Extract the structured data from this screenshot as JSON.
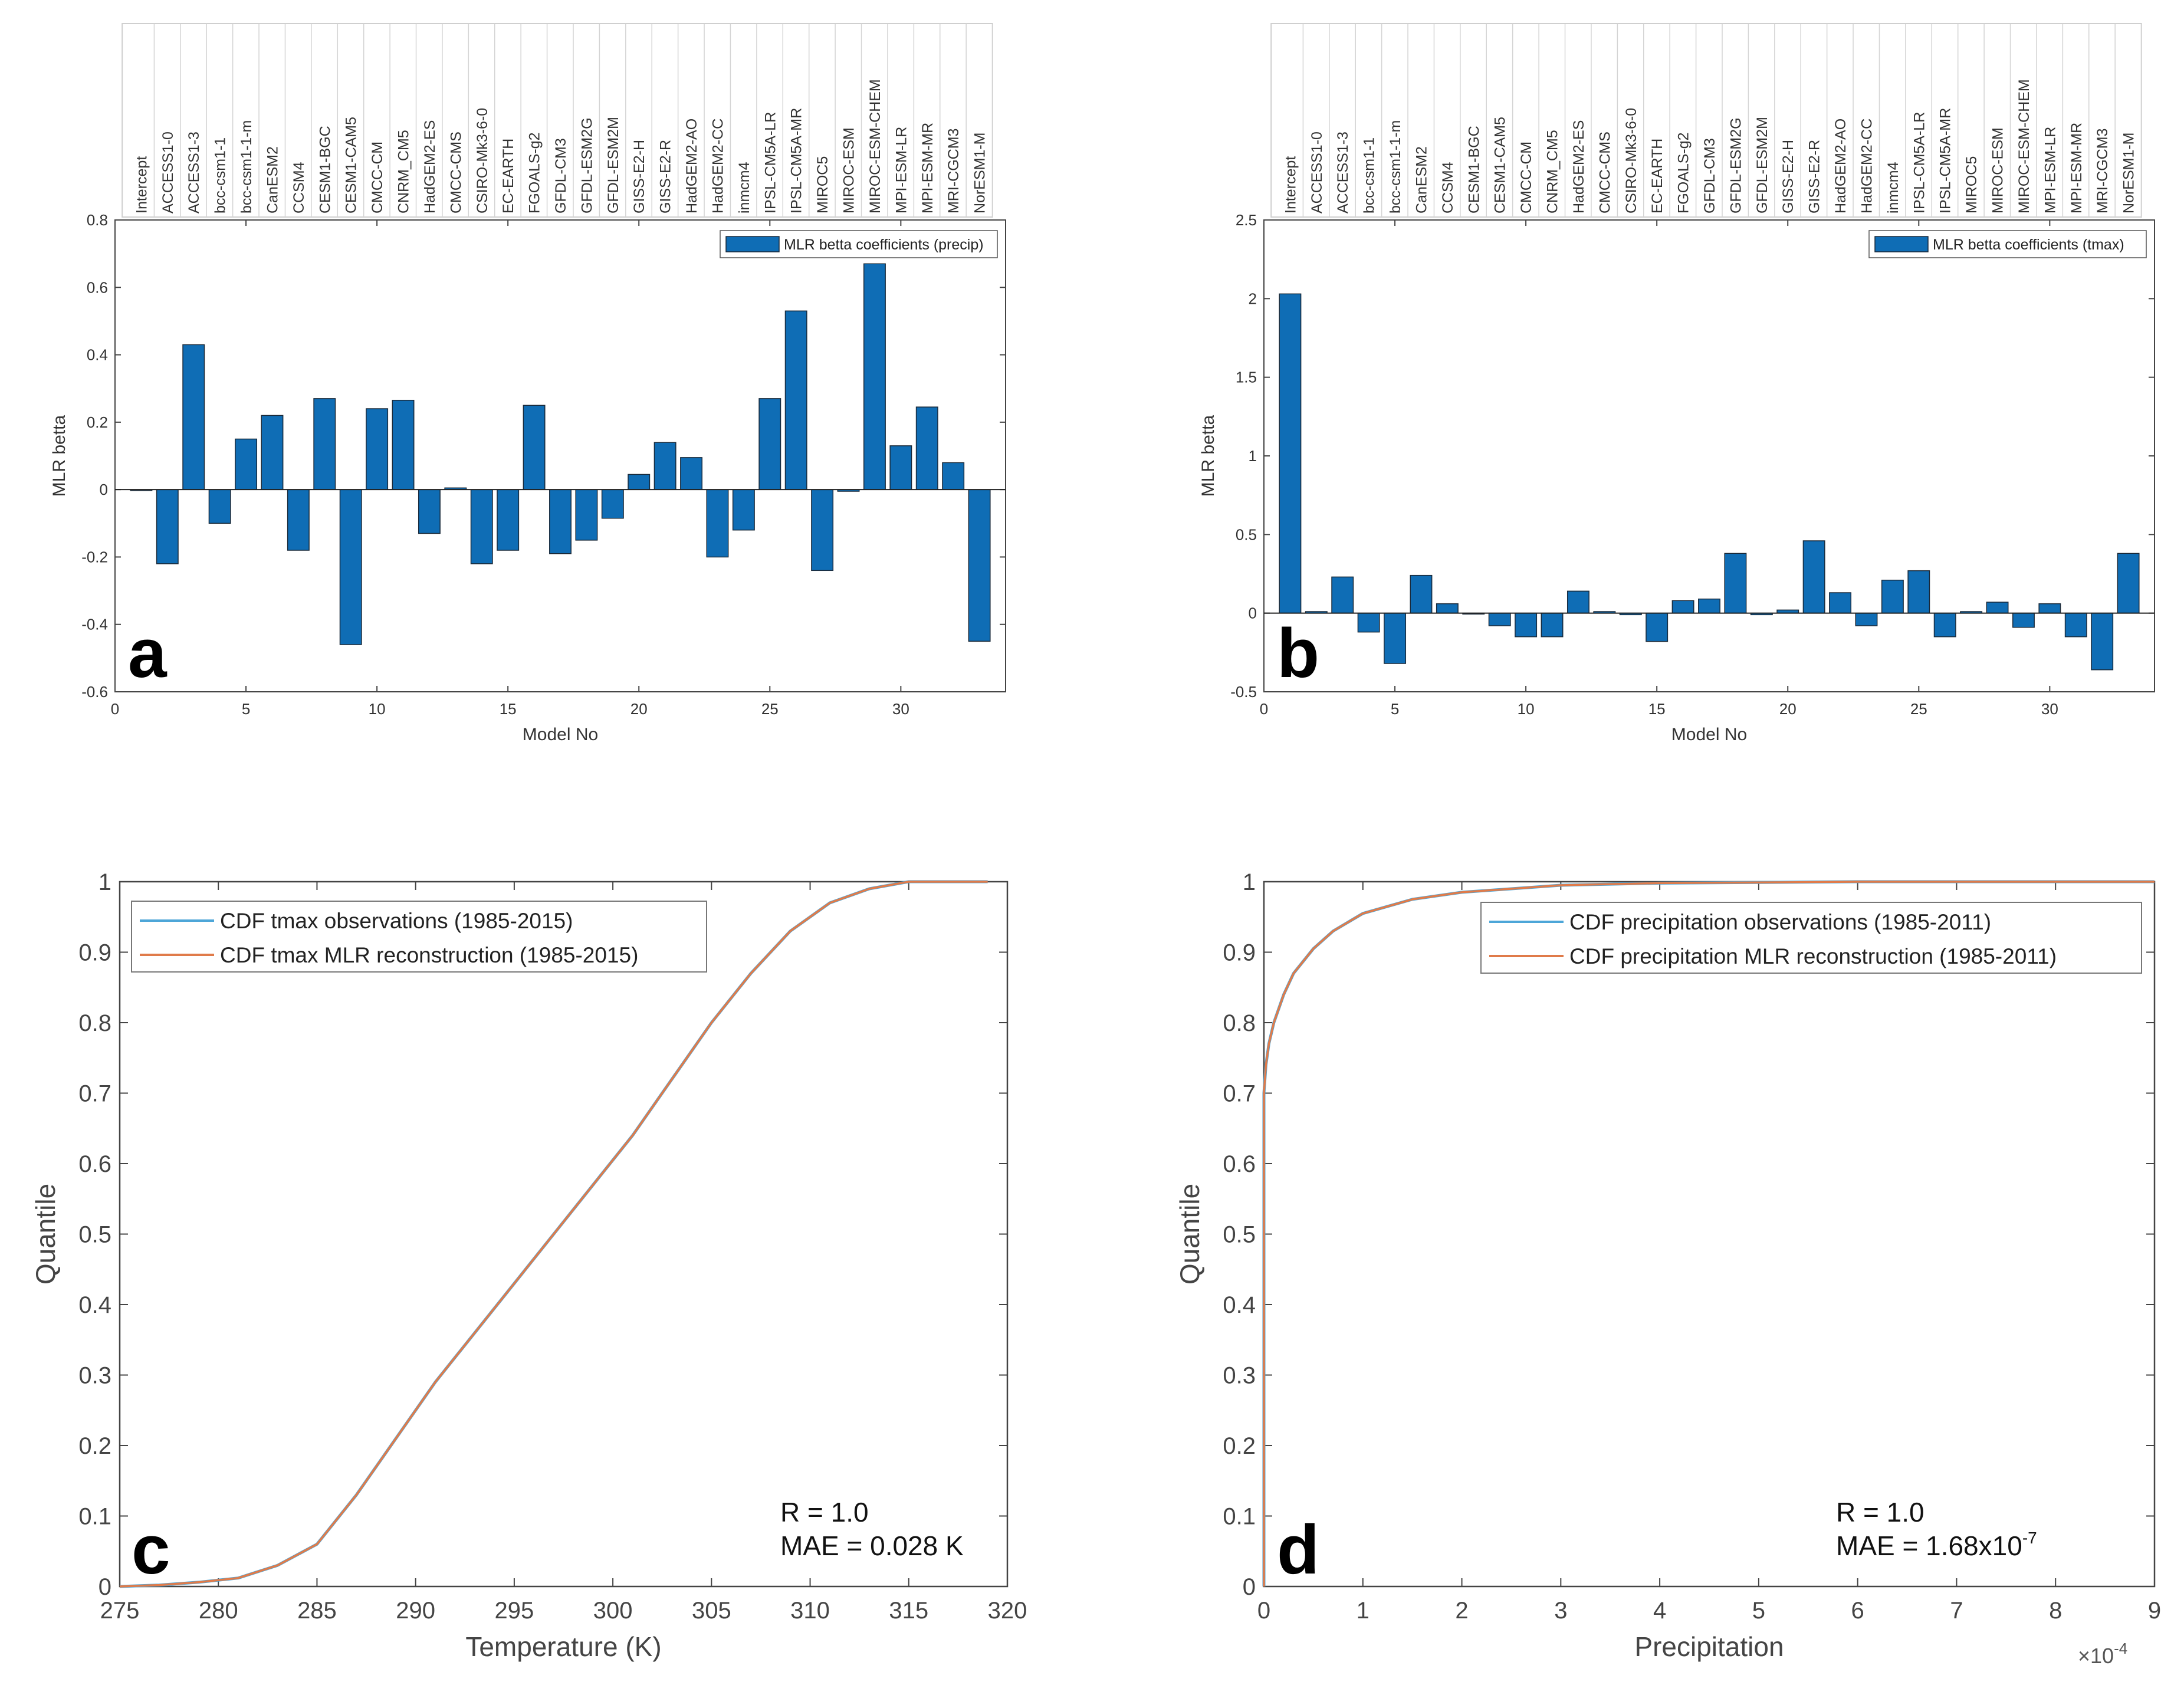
{
  "panels": {
    "a": {
      "letter": "a"
    },
    "b": {
      "letter": "b"
    },
    "c": {
      "letter": "c",
      "stats": [
        "R = 1.0",
        "MAE = 0.028 K"
      ]
    },
    "d": {
      "letter": "d",
      "stats": [
        "R = 1.0",
        "MAE = 1.68x10"
      ],
      "stats_exp": "-7",
      "x_multiplier_base": "×10",
      "x_multiplier_exp": "-4"
    }
  },
  "colors": {
    "bar": "#0f6db5",
    "obs": "#4da6d8",
    "mlr": "#e07b4a",
    "axis": "#333333",
    "grid": "#d9d9d9"
  },
  "chart_data": [
    {
      "id": "a",
      "type": "bar",
      "ylabel": "MLR betta",
      "xlabel": "Model No",
      "legend": "MLR betta coefficients (precip)",
      "legend_loc": "top-right",
      "xlim": [
        0,
        34
      ],
      "ylim": [
        -0.6,
        0.8
      ],
      "xticks": [
        0,
        5,
        10,
        15,
        20,
        25,
        30
      ],
      "yticks": [
        -0.6,
        -0.4,
        -0.2,
        0,
        0.2,
        0.4,
        0.6,
        0.8
      ],
      "ytick_labels": [
        "-0.6",
        "-0.4",
        "-0.2",
        "0",
        "0.2",
        "0.4",
        "0.6",
        "0.8"
      ],
      "categories": [
        "Intercept",
        "ACCESS1-0",
        "ACCESS1-3",
        "bcc-csm1-1",
        "bcc-csm1-1-m",
        "CanESM2",
        "CCSM4",
        "CESM1-BGC",
        "CESM1-CAM5",
        "CMCC-CM",
        "CNRM_CM5",
        "HadGEM2-ES",
        "CMCC-CMS",
        "CSIRO-Mk3-6-0",
        "EC-EARTH",
        "FGOALS-g2",
        "GFDL-CM3",
        "GFDL-ESM2G",
        "GFDL-ESM2M",
        "GISS-E2-H",
        "GISS-E2-R",
        "HadGEM2-AO",
        "HadGEM2-CC",
        "inmcm4",
        "IPSL-CM5A-LR",
        "IPSL-CM5A-MR",
        "MIROC5",
        "MIROC-ESM",
        "MIROC-ESM-CHEM",
        "MPI-ESM-LR",
        "MPI-ESM-MR",
        "MRI-CGCM3",
        "NorESM1-M"
      ],
      "values": [
        0,
        -0.22,
        0.43,
        -0.1,
        0.15,
        0.22,
        -0.18,
        0.27,
        -0.46,
        0.24,
        0.265,
        -0.13,
        0.005,
        -0.22,
        -0.18,
        0.25,
        -0.19,
        -0.15,
        -0.085,
        0.045,
        0.14,
        0.095,
        -0.2,
        -0.12,
        0.27,
        0.53,
        -0.24,
        -0.005,
        0.67,
        0.13,
        0.245,
        0.08,
        -0.45
      ]
    },
    {
      "id": "b",
      "type": "bar",
      "ylabel": "MLR betta",
      "xlabel": "Model No",
      "legend": "MLR betta coefficients (tmax)",
      "legend_loc": "top-right",
      "xlim": [
        0,
        34
      ],
      "ylim": [
        -0.5,
        2.5
      ],
      "xticks": [
        0,
        5,
        10,
        15,
        20,
        25,
        30
      ],
      "yticks": [
        -0.5,
        0,
        0.5,
        1,
        1.5,
        2,
        2.5
      ],
      "ytick_labels": [
        "-0.5",
        "0",
        "0.5",
        "1",
        "1.5",
        "2",
        "2.5"
      ],
      "categories": [
        "Intercept",
        "ACCESS1-0",
        "ACCESS1-3",
        "bcc-csm1-1",
        "bcc-csm1-1-m",
        "CanESM2",
        "CCSM4",
        "CESM1-BGC",
        "CESM1-CAM5",
        "CMCC-CM",
        "CNRM_CM5",
        "HadGEM2-ES",
        "CMCC-CMS",
        "CSIRO-Mk3-6-0",
        "EC-EARTH",
        "FGOALS-g2",
        "GFDL-CM3",
        "GFDL-ESM2G",
        "GFDL-ESM2M",
        "GISS-E2-H",
        "GISS-E2-R",
        "HadGEM2-AO",
        "HadGEM2-CC",
        "inmcm4",
        "IPSL-CM5A-LR",
        "IPSL-CM5A-MR",
        "MIROC5",
        "MIROC-ESM",
        "MIROC-ESM-CHEM",
        "MPI-ESM-LR",
        "MPI-ESM-MR",
        "MRI-CGCM3",
        "NorESM1-M"
      ],
      "values": [
        2.03,
        0.01,
        0.23,
        -0.12,
        -0.32,
        0.24,
        0.06,
        0.0,
        -0.08,
        -0.15,
        -0.15,
        0.14,
        0.01,
        -0.01,
        -0.18,
        0.08,
        0.09,
        0.38,
        -0.01,
        0.02,
        0.46,
        0.13,
        -0.08,
        0.21,
        0.27,
        -0.15,
        0.01,
        0.07,
        -0.09,
        0.06,
        -0.15,
        -0.36,
        0.38
      ]
    },
    {
      "id": "c",
      "type": "line",
      "ylabel": "Quantile",
      "xlabel": "Temperature (K)",
      "xlim": [
        275,
        320
      ],
      "ylim": [
        0,
        1
      ],
      "xticks": [
        275,
        280,
        285,
        290,
        295,
        300,
        305,
        310,
        315,
        320
      ],
      "xtick_labels": [
        "275",
        "280",
        "285",
        "290",
        "295",
        "300",
        "305",
        "310",
        "315",
        "320"
      ],
      "yticks": [
        0,
        0.1,
        0.2,
        0.3,
        0.4,
        0.5,
        0.6,
        0.7,
        0.8,
        0.9,
        1
      ],
      "ytick_labels": [
        "0",
        "0.1",
        "0.2",
        "0.3",
        "0.4",
        "0.5",
        "0.6",
        "0.7",
        "0.8",
        "0.9",
        "1"
      ],
      "legend_loc": "top-left",
      "series": [
        {
          "name": "CDF tmax observations (1985-2015)",
          "color_key": "obs",
          "x": [
            275,
            277,
            279,
            281,
            283,
            285,
            287,
            289,
            291,
            293,
            295,
            297,
            299,
            301,
            303,
            305,
            307,
            309,
            311,
            313,
            315,
            317,
            319
          ],
          "y": [
            0,
            0.002,
            0.006,
            0.012,
            0.03,
            0.06,
            0.13,
            0.21,
            0.29,
            0.36,
            0.43,
            0.5,
            0.57,
            0.64,
            0.72,
            0.8,
            0.87,
            0.93,
            0.97,
            0.99,
            1.0,
            1.0,
            1.0
          ]
        },
        {
          "name": "CDF tmax MLR reconstruction (1985-2015)",
          "color_key": "mlr",
          "x": [
            275,
            277,
            279,
            281,
            283,
            285,
            287,
            289,
            291,
            293,
            295,
            297,
            299,
            301,
            303,
            305,
            307,
            309,
            311,
            313,
            315,
            317,
            319
          ],
          "y": [
            0,
            0.002,
            0.006,
            0.012,
            0.03,
            0.06,
            0.13,
            0.21,
            0.29,
            0.36,
            0.43,
            0.5,
            0.57,
            0.64,
            0.72,
            0.8,
            0.87,
            0.93,
            0.97,
            0.99,
            1.0,
            1.0,
            1.0
          ]
        }
      ]
    },
    {
      "id": "d",
      "type": "line",
      "ylabel": "Quantile",
      "xlabel": "Precipitation",
      "xlim": [
        0,
        9
      ],
      "ylim": [
        0,
        1
      ],
      "xticks": [
        0,
        1,
        2,
        3,
        4,
        5,
        6,
        7,
        8,
        9
      ],
      "xtick_labels": [
        "0",
        "1",
        "2",
        "3",
        "4",
        "5",
        "6",
        "7",
        "8",
        "9"
      ],
      "yticks": [
        0,
        0.1,
        0.2,
        0.3,
        0.4,
        0.5,
        0.6,
        0.7,
        0.8,
        0.9,
        1
      ],
      "ytick_labels": [
        "0",
        "0.1",
        "0.2",
        "0.3",
        "0.4",
        "0.5",
        "0.6",
        "0.7",
        "0.8",
        "0.9",
        "1"
      ],
      "legend_loc": "top-right",
      "series": [
        {
          "name": "CDF precipitation observations (1985-2011)",
          "color_key": "obs",
          "x": [
            0,
            0,
            0.02,
            0.05,
            0.1,
            0.2,
            0.3,
            0.5,
            0.7,
            1.0,
            1.5,
            2.0,
            2.5,
            3.0,
            4.0,
            5.0,
            6.0,
            9.0
          ],
          "y": [
            0,
            0.7,
            0.74,
            0.77,
            0.8,
            0.84,
            0.87,
            0.905,
            0.93,
            0.955,
            0.975,
            0.985,
            0.99,
            0.995,
            0.998,
            0.999,
            1.0,
            1.0
          ]
        },
        {
          "name": "CDF precipitation MLR reconstruction  (1985-2011)",
          "color_key": "mlr",
          "x": [
            0,
            0,
            0.02,
            0.05,
            0.1,
            0.2,
            0.3,
            0.5,
            0.7,
            1.0,
            1.5,
            2.0,
            2.5,
            3.0,
            4.0,
            5.0,
            6.0,
            9.0
          ],
          "y": [
            0,
            0.7,
            0.74,
            0.77,
            0.8,
            0.84,
            0.87,
            0.905,
            0.93,
            0.955,
            0.975,
            0.985,
            0.99,
            0.995,
            0.998,
            0.999,
            1.0,
            1.0
          ]
        }
      ]
    }
  ]
}
